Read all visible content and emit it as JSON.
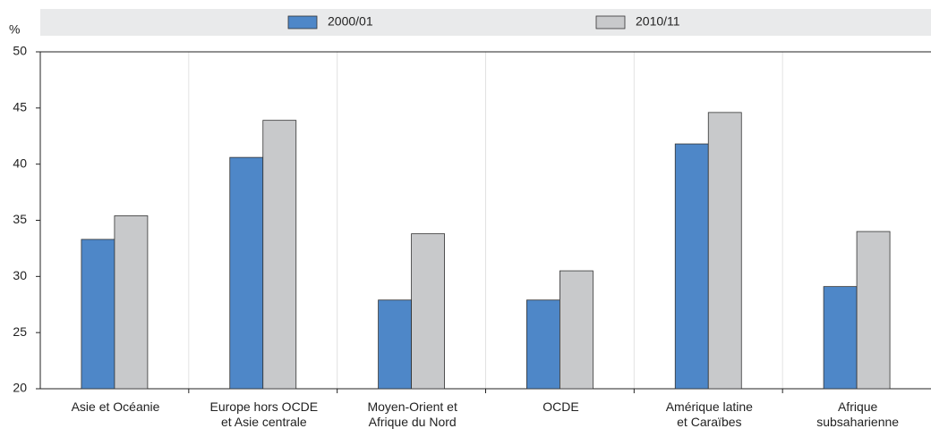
{
  "chart_data": {
    "type": "bar",
    "y_label": "%",
    "categories": [
      "Asie et Océanie",
      "Europe hors OCDE\net Asie centrale",
      "Moyen-Orient et\nAfrique du Nord",
      "OCDE",
      "Amérique latine\net Caraïbes",
      "Afrique\nsubsaharienne"
    ],
    "series": [
      {
        "name": "2000/01",
        "color": "#4e87c8",
        "values": [
          33.3,
          40.6,
          27.9,
          27.9,
          41.8,
          29.1
        ]
      },
      {
        "name": "2010/11",
        "color": "#c8c9cb",
        "values": [
          35.4,
          43.9,
          33.8,
          30.5,
          44.6,
          34.0
        ]
      }
    ],
    "ylim": [
      20,
      50
    ],
    "yticks": [
      20,
      25,
      30,
      35,
      40,
      45,
      50
    ]
  }
}
